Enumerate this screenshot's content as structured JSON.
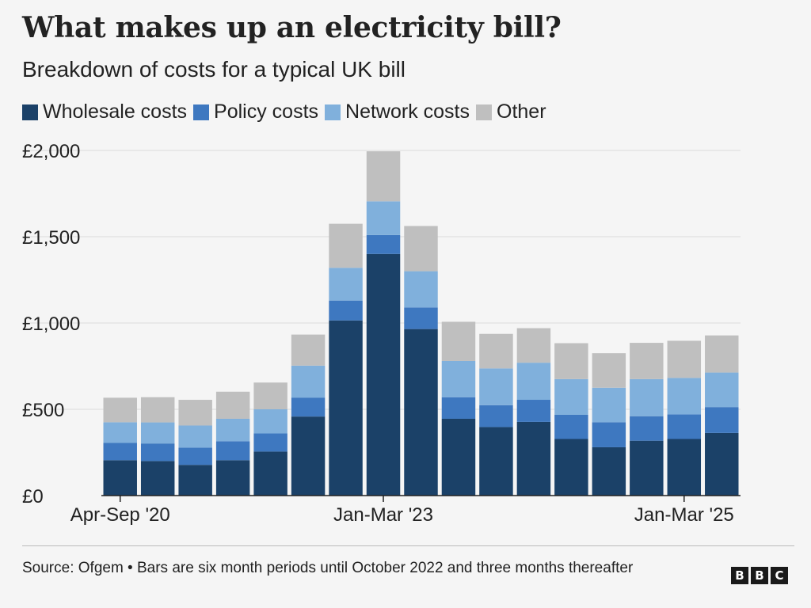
{
  "header": {
    "title": "What makes up an electricity bill?",
    "subtitle": "Breakdown of costs for a typical UK bill"
  },
  "legend": {
    "items": [
      {
        "label": "Wholesale costs",
        "color": "#1b4168"
      },
      {
        "label": "Policy costs",
        "color": "#3e78c0"
      },
      {
        "label": "Network costs",
        "color": "#80b0dc"
      },
      {
        "label": "Other",
        "color": "#bfbfbf"
      }
    ]
  },
  "chart_data": {
    "type": "bar",
    "stacked": true,
    "title": "What makes up an electricity bill?",
    "subtitle": "Breakdown of costs for a typical UK bill",
    "xlabel": "",
    "ylabel": "",
    "ylim": [
      0,
      2000
    ],
    "y_ticks": [
      "£0",
      "£500",
      "£1,000",
      "£1,500",
      "£2,000"
    ],
    "y_tick_values": [
      0,
      500,
      1000,
      1500,
      2000
    ],
    "grid": true,
    "legend_position": "top",
    "bar_count": 17,
    "x_tick_labels": [
      {
        "bar_index": 0,
        "label": "Apr-Sep '20"
      },
      {
        "bar_index": 7,
        "label": "Jan-Mar '23"
      },
      {
        "bar_index": 15,
        "label": "Jan-Mar '25"
      }
    ],
    "series": [
      {
        "name": "Wholesale costs",
        "color": "#1b4168",
        "values": [
          205,
          200,
          178,
          205,
          255,
          458,
          1015,
          1400,
          965,
          445,
          397,
          427,
          328,
          280,
          318,
          328,
          363
        ]
      },
      {
        "name": "Policy costs",
        "color": "#3e78c0",
        "values": [
          100,
          102,
          100,
          110,
          105,
          110,
          115,
          110,
          125,
          125,
          127,
          128,
          140,
          145,
          142,
          142,
          150
        ]
      },
      {
        "name": "Network costs",
        "color": "#80b0dc",
        "values": [
          120,
          122,
          128,
          130,
          140,
          185,
          190,
          195,
          210,
          210,
          213,
          215,
          207,
          200,
          215,
          212,
          200
        ]
      },
      {
        "name": "Other",
        "color": "#bfbfbf",
        "values": [
          142,
          146,
          149,
          157,
          155,
          180,
          255,
          290,
          262,
          227,
          200,
          200,
          208,
          200,
          210,
          215,
          215
        ]
      }
    ]
  },
  "footer": {
    "source": "Source: Ofgem • Bars are six month periods until October 2022 and three months thereafter",
    "logo": [
      "B",
      "B",
      "C"
    ]
  }
}
